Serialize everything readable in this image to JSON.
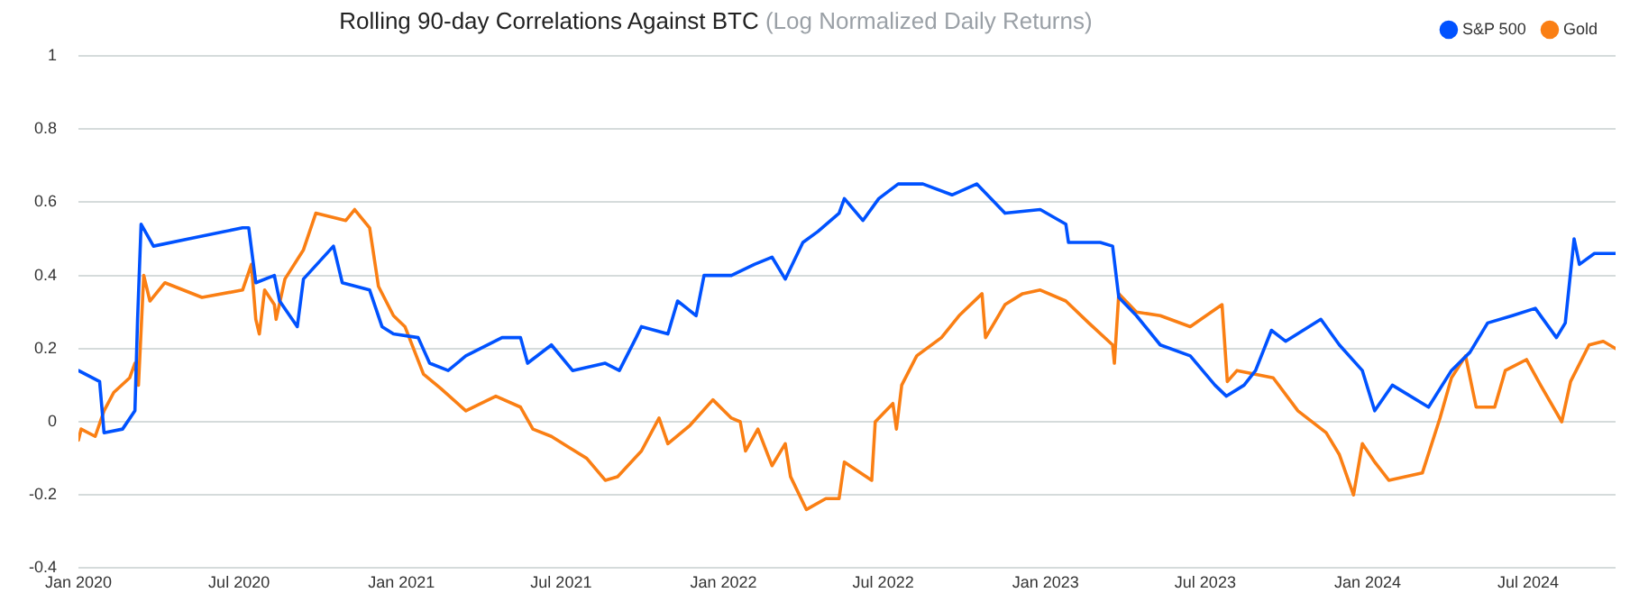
{
  "chart_data": {
    "type": "line",
    "title": "Rolling 90-day Correlations Against BTC",
    "subtitle": "(Log Normalized Daily Returns)",
    "xlim": [
      "2020-01-01",
      "2024-10-08"
    ],
    "xticks": [
      {
        "value": "2020-01-01",
        "label": "Jan 2020"
      },
      {
        "value": "2020-07-01",
        "label": "Jul 2020"
      },
      {
        "value": "2021-01-01",
        "label": "Jan 2021"
      },
      {
        "value": "2021-07-01",
        "label": "Jul 2021"
      },
      {
        "value": "2022-01-01",
        "label": "Jan 2022"
      },
      {
        "value": "2022-07-01",
        "label": "Jul 2022"
      },
      {
        "value": "2023-01-01",
        "label": "Jan 2023"
      },
      {
        "value": "2023-07-01",
        "label": "Jul 2023"
      },
      {
        "value": "2024-01-01",
        "label": "Jan 2024"
      },
      {
        "value": "2024-07-01",
        "label": "Jul 2024"
      }
    ],
    "ylim": [
      -0.4,
      1
    ],
    "yticks": [
      -0.4,
      -0.2,
      0,
      0.2,
      0.4,
      0.6,
      0.8,
      1
    ],
    "grid": "y",
    "legend": "top right",
    "series": [
      {
        "name": "S&P 500",
        "color": "#0052ff",
        "x": [
          "2020-01-01",
          "2020-01-25",
          "2020-01-30",
          "2020-02-20",
          "2020-03-05",
          "2020-03-08",
          "2020-03-12",
          "2020-03-26",
          "2020-05-05",
          "2020-07-05",
          "2020-07-12",
          "2020-07-20",
          "2020-08-10",
          "2020-08-16",
          "2020-09-05",
          "2020-09-12",
          "2020-10-16",
          "2020-10-26",
          "2020-11-26",
          "2020-12-10",
          "2020-12-23",
          "2021-01-20",
          "2021-02-02",
          "2021-02-23",
          "2021-03-15",
          "2021-04-25",
          "2021-05-16",
          "2021-05-24",
          "2021-06-20",
          "2021-07-14",
          "2021-08-20",
          "2021-09-05",
          "2021-09-24",
          "2021-09-30",
          "2021-10-30",
          "2021-11-10",
          "2021-12-01",
          "2021-12-10",
          "2022-01-10",
          "2022-02-05",
          "2022-02-25",
          "2022-03-12",
          "2022-04-01",
          "2022-04-18",
          "2022-05-12",
          "2022-05-18",
          "2022-06-08",
          "2022-06-26",
          "2022-07-18",
          "2022-08-15",
          "2022-09-17",
          "2022-10-15",
          "2022-11-16",
          "2022-12-26",
          "2023-01-24",
          "2023-01-27",
          "2023-03-04",
          "2023-03-18",
          "2023-03-25",
          "2023-04-14",
          "2023-05-11",
          "2023-06-14",
          "2023-07-12",
          "2023-07-25",
          "2023-08-14",
          "2023-08-27",
          "2023-09-14",
          "2023-09-30",
          "2023-11-09",
          "2023-11-30",
          "2023-12-26",
          "2024-01-09",
          "2024-01-29",
          "2024-03-10",
          "2024-04-05",
          "2024-04-26",
          "2024-05-16",
          "2024-06-13",
          "2024-07-09",
          "2024-08-02",
          "2024-08-12",
          "2024-08-22",
          "2024-08-28",
          "2024-09-14",
          "2024-10-08"
        ],
        "values": [
          0.14,
          0.11,
          -0.03,
          -0.02,
          0.03,
          0.28,
          0.54,
          0.48,
          0.5,
          0.53,
          0.53,
          0.38,
          0.4,
          0.33,
          0.26,
          0.39,
          0.48,
          0.38,
          0.36,
          0.26,
          0.24,
          0.23,
          0.16,
          0.14,
          0.18,
          0.23,
          0.23,
          0.16,
          0.21,
          0.14,
          0.16,
          0.14,
          0.23,
          0.26,
          0.24,
          0.33,
          0.29,
          0.4,
          0.4,
          0.43,
          0.45,
          0.39,
          0.49,
          0.52,
          0.57,
          0.61,
          0.55,
          0.61,
          0.65,
          0.65,
          0.62,
          0.65,
          0.57,
          0.58,
          0.54,
          0.49,
          0.49,
          0.48,
          0.34,
          0.29,
          0.21,
          0.18,
          0.1,
          0.07,
          0.1,
          0.14,
          0.25,
          0.22,
          0.28,
          0.21,
          0.14,
          0.03,
          0.1,
          0.04,
          0.14,
          0.19,
          0.27,
          0.29,
          0.31,
          0.23,
          0.27,
          0.5,
          0.43,
          0.46,
          0.46
        ]
      },
      {
        "name": "Gold",
        "color": "#fa7f14",
        "x": [
          "2020-01-01",
          "2020-01-04",
          "2020-01-20",
          "2020-01-30",
          "2020-02-10",
          "2020-02-28",
          "2020-03-05",
          "2020-03-09",
          "2020-03-15",
          "2020-03-22",
          "2020-04-08",
          "2020-05-20",
          "2020-07-05",
          "2020-07-15",
          "2020-07-20",
          "2020-07-24",
          "2020-07-30",
          "2020-08-10",
          "2020-08-12",
          "2020-08-22",
          "2020-09-12",
          "2020-09-26",
          "2020-10-30",
          "2020-11-09",
          "2020-11-26",
          "2020-12-06",
          "2020-12-23",
          "2021-01-05",
          "2021-01-26",
          "2021-02-15",
          "2021-03-15",
          "2021-04-18",
          "2021-05-16",
          "2021-05-30",
          "2021-06-20",
          "2021-07-10",
          "2021-07-30",
          "2021-08-20",
          "2021-09-03",
          "2021-09-30",
          "2021-10-20",
          "2021-10-30",
          "2021-11-24",
          "2021-12-20",
          "2022-01-10",
          "2022-01-20",
          "2022-01-26",
          "2022-02-09",
          "2022-02-25",
          "2022-03-12",
          "2022-03-18",
          "2022-04-05",
          "2022-04-27",
          "2022-05-12",
          "2022-05-18",
          "2022-06-18",
          "2022-06-22",
          "2022-07-12",
          "2022-07-16",
          "2022-07-22",
          "2022-08-08",
          "2022-09-05",
          "2022-09-25",
          "2022-10-21",
          "2022-10-25",
          "2022-11-16",
          "2022-12-06",
          "2022-12-26",
          "2023-01-24",
          "2023-02-19",
          "2023-03-18",
          "2023-03-20",
          "2023-03-25",
          "2023-04-14",
          "2023-05-11",
          "2023-06-14",
          "2023-07-20",
          "2023-07-26",
          "2023-08-06",
          "2023-09-16",
          "2023-10-14",
          "2023-11-15",
          "2023-11-30",
          "2023-12-16",
          "2023-12-26",
          "2024-01-09",
          "2024-01-25",
          "2024-03-03",
          "2024-03-23",
          "2024-04-05",
          "2024-04-21",
          "2024-05-03",
          "2024-05-24",
          "2024-06-05",
          "2024-06-29",
          "2024-07-15",
          "2024-08-08",
          "2024-08-18",
          "2024-09-08",
          "2024-09-24",
          "2024-10-08"
        ],
        "values": [
          -0.05,
          -0.02,
          -0.04,
          0.03,
          0.08,
          0.12,
          0.16,
          0.1,
          0.4,
          0.33,
          0.38,
          0.34,
          0.36,
          0.43,
          0.28,
          0.24,
          0.36,
          0.32,
          0.28,
          0.39,
          0.47,
          0.57,
          0.55,
          0.58,
          0.53,
          0.37,
          0.29,
          0.26,
          0.13,
          0.09,
          0.03,
          0.07,
          0.04,
          -0.02,
          -0.04,
          -0.07,
          -0.1,
          -0.16,
          -0.15,
          -0.08,
          0.01,
          -0.06,
          -0.01,
          0.06,
          0.01,
          0,
          -0.08,
          -0.02,
          -0.12,
          -0.06,
          -0.15,
          -0.24,
          -0.21,
          -0.21,
          -0.11,
          -0.16,
          0,
          0.05,
          -0.02,
          0.1,
          0.18,
          0.23,
          0.29,
          0.35,
          0.23,
          0.32,
          0.35,
          0.36,
          0.33,
          0.27,
          0.21,
          0.16,
          0.35,
          0.3,
          0.29,
          0.26,
          0.32,
          0.11,
          0.14,
          0.12,
          0.03,
          -0.03,
          -0.09,
          -0.2,
          -0.06,
          -0.11,
          -0.16,
          -0.14,
          0.01,
          0.12,
          0.18,
          0.04,
          0.04,
          0.14,
          0.17,
          0.1,
          0,
          0.11,
          0.21,
          0.22,
          0.2
        ]
      }
    ]
  }
}
